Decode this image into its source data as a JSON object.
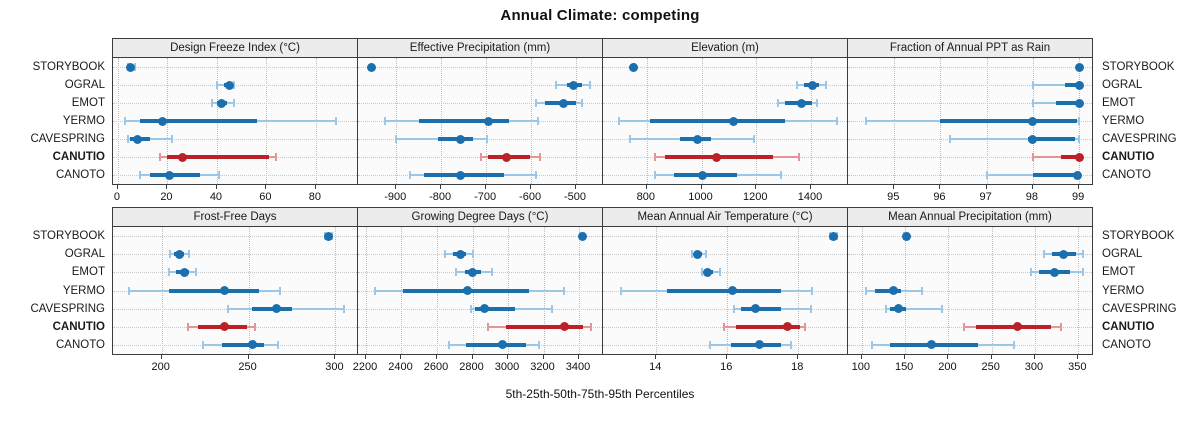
{
  "title": "Annual Climate: competing",
  "caption": "5th-25th-50th-75th-95th Percentiles",
  "sites": [
    "STORYBOOK",
    "OGRAL",
    "EMOT",
    "YERMO",
    "CAVESPRING",
    "CANUTIO",
    "CANOTO"
  ],
  "highlight_site": "CANUTIO",
  "colors": {
    "blue_dark": "#1c6fad",
    "blue_light": "#9cc7e6",
    "red_dark": "#bb2126",
    "red_light": "#e59597",
    "grid": "#c4c4c4",
    "header_bg": "#ececec",
    "border": "#3c3c3c"
  },
  "chart_data": [
    {
      "type": "dot-whisker-percentiles",
      "row": 0,
      "col": 0,
      "title": "Design Freeze Index (°C)",
      "xlim": [
        -2,
        97
      ],
      "ticks": [
        0,
        20,
        40,
        60,
        80
      ],
      "percentile_order": [
        "p5",
        "p25",
        "p50",
        "p75",
        "p95"
      ],
      "values": {
        "STORYBOOK": [
          4,
          5,
          5,
          6,
          7
        ],
        "OGRAL": [
          40,
          43,
          45,
          46,
          47
        ],
        "EMOT": [
          38,
          40,
          42,
          44,
          47
        ],
        "YERMO": [
          3,
          9,
          18,
          56,
          88
        ],
        "CAVESPRING": [
          4,
          5,
          8,
          13,
          22
        ],
        "CANUTIO": [
          17,
          20,
          26,
          61,
          64
        ],
        "CANOTO": [
          9,
          13,
          21,
          33,
          41
        ]
      }
    },
    {
      "type": "dot-whisker-percentiles",
      "row": 0,
      "col": 1,
      "title": "Effective Precipitation (mm)",
      "xlim": [
        -985,
        -440
      ],
      "ticks": [
        -900,
        -800,
        -700,
        -600,
        -500
      ],
      "percentile_order": [
        "p5",
        "p25",
        "p50",
        "p75",
        "p95"
      ],
      "values": {
        "STORYBOOK": [
          -957,
          -956,
          -955,
          -954,
          -953
        ],
        "OGRAL": [
          -545,
          -520,
          -505,
          -487,
          -468
        ],
        "EMOT": [
          -590,
          -570,
          -528,
          -500,
          -487
        ],
        "YERMO": [
          -925,
          -850,
          -695,
          -648,
          -585
        ],
        "CAVESPRING": [
          -900,
          -807,
          -758,
          -729,
          -698
        ],
        "CANUTIO": [
          -712,
          -695,
          -655,
          -603,
          -580
        ],
        "CANOTO": [
          -870,
          -838,
          -757,
          -660,
          -588
        ]
      }
    },
    {
      "type": "dot-whisker-percentiles",
      "row": 0,
      "col": 2,
      "title": "Elevation (m)",
      "xlim": [
        640,
        1535
      ],
      "ticks": [
        800,
        1000,
        1200,
        1400
      ],
      "percentile_order": [
        "p5",
        "p25",
        "p50",
        "p75",
        "p95"
      ],
      "values": {
        "STORYBOOK": [
          748,
          749,
          750,
          751,
          752
        ],
        "OGRAL": [
          1350,
          1375,
          1405,
          1430,
          1455
        ],
        "EMOT": [
          1280,
          1305,
          1365,
          1405,
          1420
        ],
        "YERMO": [
          700,
          810,
          1115,
          1305,
          1495
        ],
        "CAVESPRING": [
          740,
          920,
          985,
          1035,
          1190
        ],
        "CANUTIO": [
          830,
          865,
          1055,
          1260,
          1355
        ],
        "CANOTO": [
          830,
          900,
          1005,
          1130,
          1290
        ]
      }
    },
    {
      "type": "dot-whisker-percentiles",
      "row": 0,
      "col": 3,
      "title": "Fraction of Annual PPT as Rain",
      "xlim": [
        94.0,
        99.3
      ],
      "ticks": [
        95,
        96,
        97,
        98,
        99
      ],
      "percentile_order": [
        "p5",
        "p25",
        "p50",
        "p75",
        "p95"
      ],
      "values": {
        "STORYBOOK": [
          99,
          99,
          99,
          99,
          99
        ],
        "OGRAL": [
          98,
          98.7,
          99,
          99,
          99
        ],
        "EMOT": [
          98,
          98.5,
          99,
          99,
          99
        ],
        "YERMO": [
          94.4,
          96,
          98,
          98.95,
          99
        ],
        "CAVESPRING": [
          96.2,
          97.9,
          98,
          98.9,
          99
        ],
        "CANUTIO": [
          98,
          98.6,
          99,
          99,
          99
        ],
        "CANOTO": [
          97,
          98,
          98.97,
          99,
          99
        ]
      }
    },
    {
      "type": "dot-whisker-percentiles",
      "row": 1,
      "col": 0,
      "title": "Frost-Free Days",
      "xlim": [
        172,
        313
      ],
      "ticks": [
        200,
        250,
        300
      ],
      "percentile_order": [
        "p5",
        "p25",
        "p50",
        "p75",
        "p95"
      ],
      "values": {
        "STORYBOOK": [
          294,
          295,
          296,
          297,
          298
        ],
        "OGRAL": [
          205,
          207,
          210,
          213,
          216
        ],
        "EMOT": [
          204,
          208,
          213,
          216,
          220
        ],
        "YERMO": [
          181,
          204,
          236,
          256,
          268
        ],
        "CAVESPRING": [
          238,
          252,
          266,
          275,
          305
        ],
        "CANUTIO": [
          215,
          221,
          236,
          249,
          254
        ],
        "CANOTO": [
          224,
          235,
          252,
          259,
          267
        ]
      }
    },
    {
      "type": "dot-whisker-percentiles",
      "row": 1,
      "col": 1,
      "title": "Growing Degree Days (°C)",
      "xlim": [
        2155,
        3535
      ],
      "ticks": [
        2200,
        2400,
        2600,
        2800,
        3000,
        3200,
        3400
      ],
      "percentile_order": [
        "p5",
        "p25",
        "p50",
        "p75",
        "p95"
      ],
      "values": {
        "STORYBOOK": [
          3405,
          3415,
          3420,
          3425,
          3430
        ],
        "OGRAL": [
          2645,
          2690,
          2730,
          2765,
          2800
        ],
        "EMOT": [
          2705,
          2760,
          2800,
          2850,
          2910
        ],
        "YERMO": [
          2250,
          2410,
          2770,
          3120,
          3315
        ],
        "CAVESPRING": [
          2790,
          2815,
          2865,
          3040,
          3250
        ],
        "CANUTIO": [
          2890,
          2990,
          3320,
          3420,
          3465
        ],
        "CANOTO": [
          2670,
          2765,
          2970,
          3100,
          3175
        ]
      }
    },
    {
      "type": "dot-whisker-percentiles",
      "row": 1,
      "col": 2,
      "title": "Mean Annual Air Temperature (°C)",
      "xlim": [
        12.5,
        19.4
      ],
      "ticks": [
        14,
        16,
        18
      ],
      "percentile_order": [
        "p5",
        "p25",
        "p50",
        "p75",
        "p95"
      ],
      "values": {
        "STORYBOOK": [
          18.9,
          18.95,
          19.0,
          19.05,
          19.1
        ],
        "OGRAL": [
          15.0,
          15.05,
          15.15,
          15.3,
          15.4
        ],
        "EMOT": [
          15.3,
          15.35,
          15.45,
          15.6,
          15.8
        ],
        "YERMO": [
          13.0,
          14.3,
          16.15,
          17.5,
          18.4
        ],
        "CAVESPRING": [
          16.2,
          16.4,
          16.8,
          17.5,
          18.35
        ],
        "CANUTIO": [
          15.9,
          16.25,
          17.7,
          18.05,
          18.2
        ],
        "CANOTO": [
          15.5,
          16.1,
          16.9,
          17.5,
          17.8
        ]
      }
    },
    {
      "type": "dot-whisker-percentiles",
      "row": 1,
      "col": 3,
      "title": "Mean Annual Precipitation (mm)",
      "xlim": [
        84,
        367
      ],
      "ticks": [
        100,
        150,
        200,
        250,
        300,
        350
      ],
      "percentile_order": [
        "p5",
        "p25",
        "p50",
        "p75",
        "p95"
      ],
      "values": {
        "STORYBOOK": [
          149,
          150,
          151,
          152,
          153
        ],
        "OGRAL": [
          310,
          320,
          333,
          347,
          355
        ],
        "EMOT": [
          295,
          305,
          323,
          340,
          355
        ],
        "YERMO": [
          105,
          115,
          136,
          145,
          170
        ],
        "CAVESPRING": [
          128,
          132,
          142,
          151,
          193
        ],
        "CANUTIO": [
          218,
          232,
          280,
          318,
          330
        ],
        "CANOTO": [
          112,
          132,
          181,
          234,
          276
        ]
      }
    }
  ]
}
